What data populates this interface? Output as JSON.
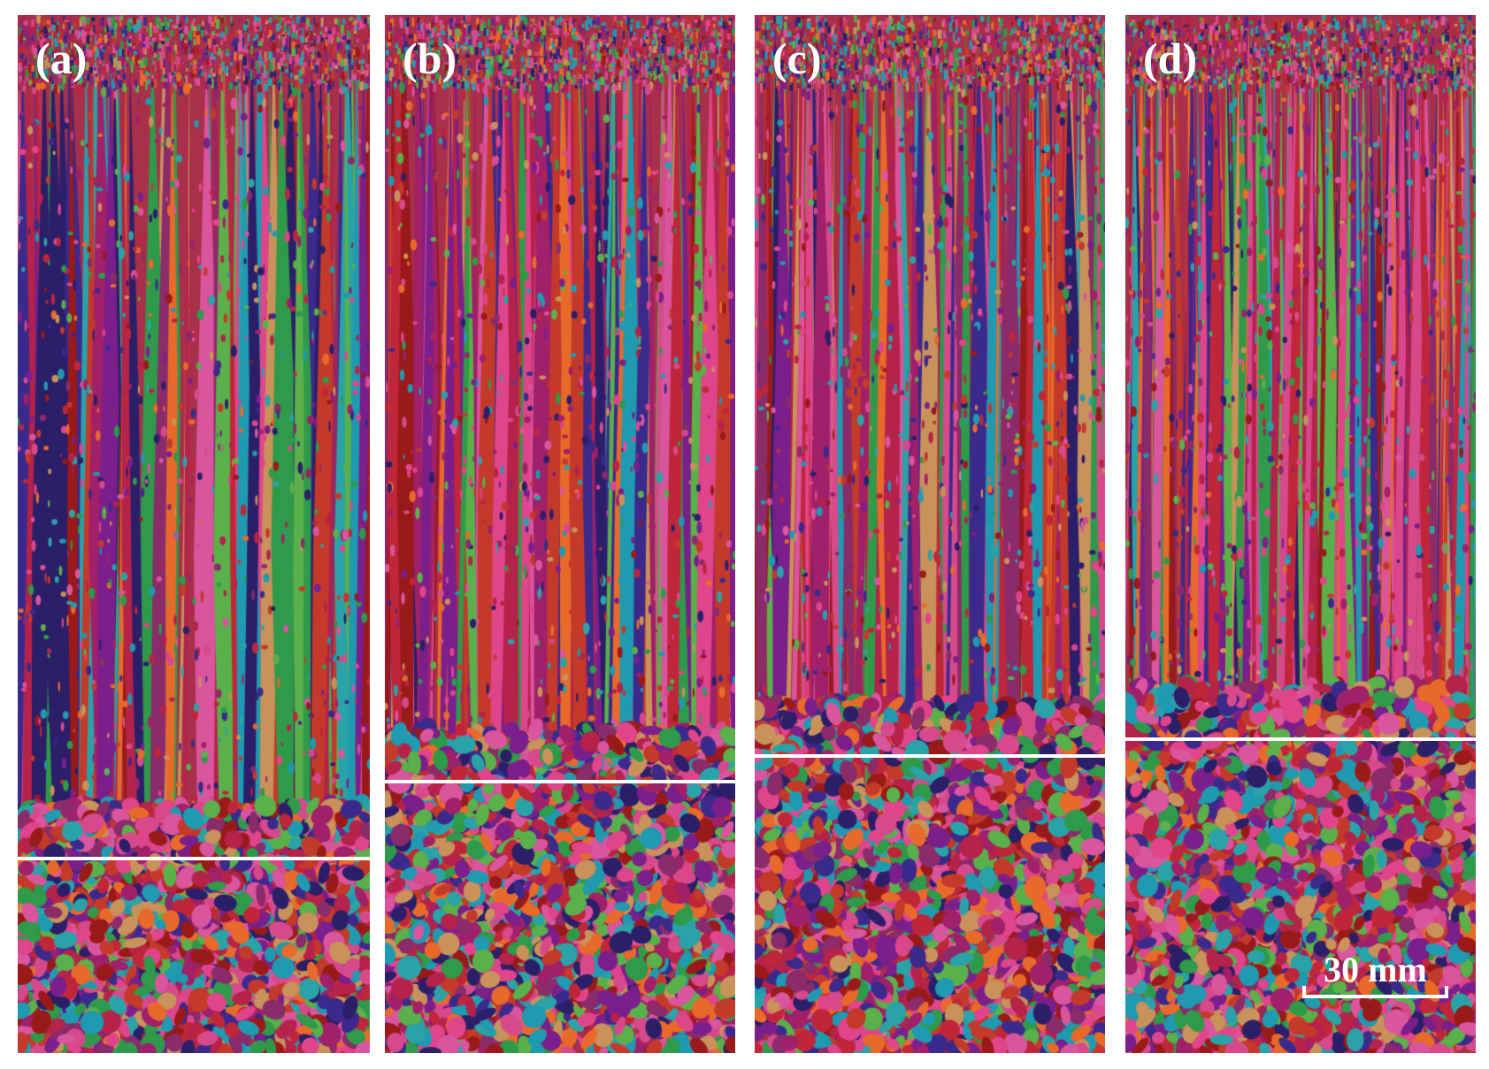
{
  "panels": [
    {
      "id": "a",
      "label": "(a)",
      "columnar_fraction": 0.813
    },
    {
      "id": "b",
      "label": "(b)",
      "columnar_fraction": 0.739
    },
    {
      "id": "c",
      "label": "(c)",
      "columnar_fraction": 0.714
    },
    {
      "id": "d",
      "label": "(d)",
      "columnar_fraction": 0.697
    }
  ],
  "scale_bar": {
    "label": "30 mm"
  },
  "colors": {
    "grain_palette": [
      "#c0263a",
      "#d64a8c",
      "#9a1a1a",
      "#e0448a",
      "#2aa3a8",
      "#2f9a4a",
      "#7a1f8c",
      "#c8925a",
      "#b5224a",
      "#d9559e",
      "#1f9ab0",
      "#e86a2a",
      "#8a2b6a",
      "#3b2a8c",
      "#c43a2a",
      "#a0206a",
      "#5ab04a",
      "#2b1f6a"
    ],
    "divider": "#ffffff",
    "label": "#ffffff"
  }
}
